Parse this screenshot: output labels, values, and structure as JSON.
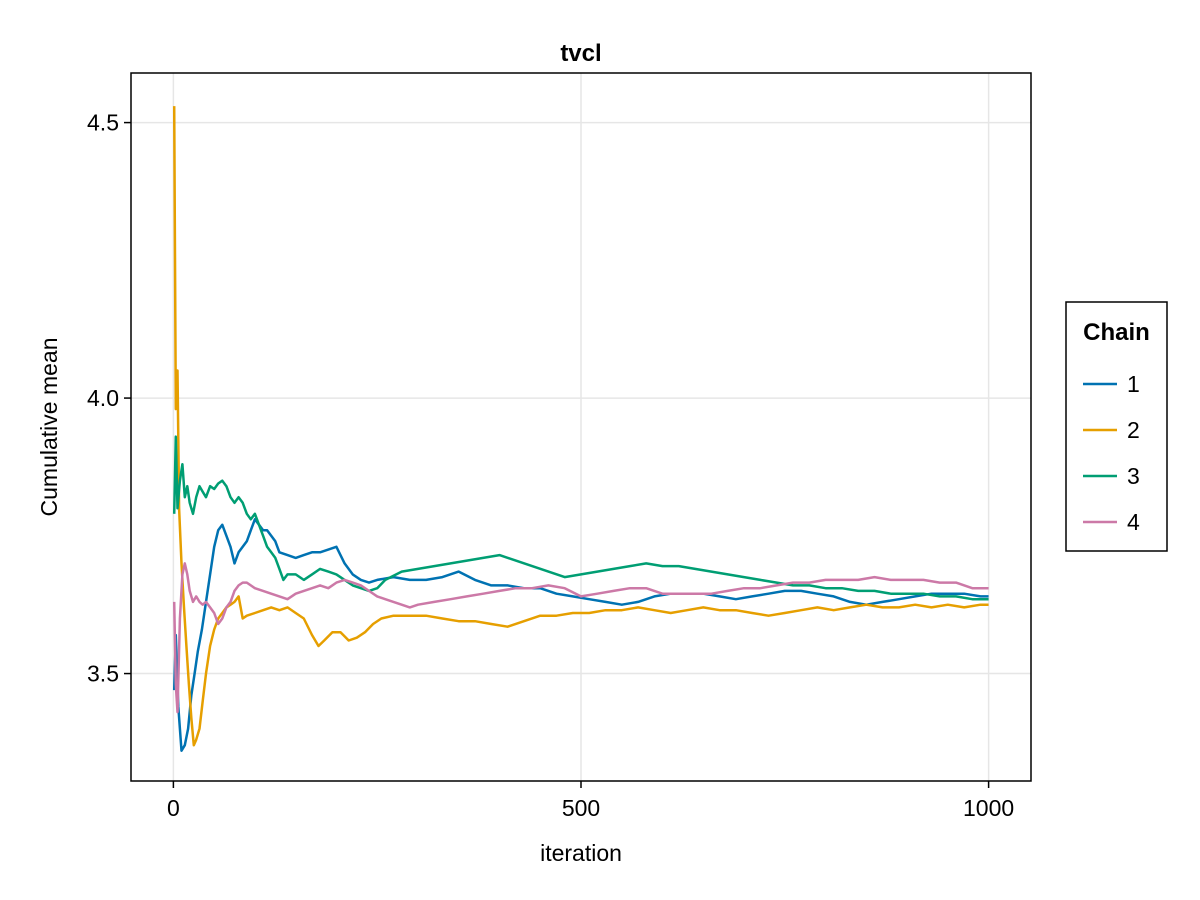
{
  "chart_data": {
    "type": "line",
    "title": "tvcl",
    "xlabel": "iteration",
    "ylabel": "Cumulative mean",
    "xlim": [
      -52,
      1052
    ],
    "ylim": [
      3.305,
      4.59
    ],
    "xticks": [
      0,
      500,
      1000
    ],
    "xtick_labels": [
      "0",
      "500",
      "1000"
    ],
    "yticks": [
      3.5,
      4.0,
      4.5
    ],
    "ytick_labels": [
      "3.5",
      "4.0",
      "4.5"
    ],
    "grid": true,
    "legend": {
      "title": "Chain",
      "position": "right"
    },
    "series": [
      {
        "name": "1",
        "color": "#0072b2",
        "points": [
          [
            1,
            3.47
          ],
          [
            3,
            3.57
          ],
          [
            6,
            3.44
          ],
          [
            10,
            3.36
          ],
          [
            14,
            3.37
          ],
          [
            18,
            3.4
          ],
          [
            22,
            3.46
          ],
          [
            26,
            3.5
          ],
          [
            30,
            3.54
          ],
          [
            35,
            3.58
          ],
          [
            40,
            3.63
          ],
          [
            45,
            3.68
          ],
          [
            50,
            3.73
          ],
          [
            55,
            3.76
          ],
          [
            60,
            3.77
          ],
          [
            65,
            3.75
          ],
          [
            70,
            3.73
          ],
          [
            75,
            3.7
          ],
          [
            80,
            3.72
          ],
          [
            85,
            3.73
          ],
          [
            90,
            3.74
          ],
          [
            95,
            3.76
          ],
          [
            100,
            3.78
          ],
          [
            105,
            3.77
          ],
          [
            110,
            3.76
          ],
          [
            115,
            3.76
          ],
          [
            120,
            3.75
          ],
          [
            125,
            3.74
          ],
          [
            130,
            3.72
          ],
          [
            140,
            3.715
          ],
          [
            150,
            3.71
          ],
          [
            160,
            3.715
          ],
          [
            170,
            3.72
          ],
          [
            180,
            3.72
          ],
          [
            190,
            3.725
          ],
          [
            200,
            3.73
          ],
          [
            210,
            3.7
          ],
          [
            220,
            3.68
          ],
          [
            230,
            3.67
          ],
          [
            240,
            3.665
          ],
          [
            250,
            3.67
          ],
          [
            270,
            3.675
          ],
          [
            290,
            3.67
          ],
          [
            310,
            3.67
          ],
          [
            330,
            3.675
          ],
          [
            350,
            3.685
          ],
          [
            370,
            3.67
          ],
          [
            390,
            3.66
          ],
          [
            410,
            3.66
          ],
          [
            430,
            3.655
          ],
          [
            450,
            3.655
          ],
          [
            470,
            3.645
          ],
          [
            490,
            3.64
          ],
          [
            510,
            3.635
          ],
          [
            530,
            3.63
          ],
          [
            550,
            3.625
          ],
          [
            570,
            3.63
          ],
          [
            590,
            3.64
          ],
          [
            610,
            3.645
          ],
          [
            630,
            3.645
          ],
          [
            650,
            3.645
          ],
          [
            670,
            3.64
          ],
          [
            690,
            3.635
          ],
          [
            710,
            3.64
          ],
          [
            730,
            3.645
          ],
          [
            750,
            3.65
          ],
          [
            770,
            3.65
          ],
          [
            790,
            3.645
          ],
          [
            810,
            3.64
          ],
          [
            830,
            3.63
          ],
          [
            850,
            3.625
          ],
          [
            870,
            3.63
          ],
          [
            890,
            3.635
          ],
          [
            910,
            3.64
          ],
          [
            930,
            3.645
          ],
          [
            950,
            3.645
          ],
          [
            970,
            3.645
          ],
          [
            990,
            3.64
          ],
          [
            1000,
            3.64
          ]
        ]
      },
      {
        "name": "2",
        "color": "#e69f00",
        "points": [
          [
            1,
            4.53
          ],
          [
            3,
            3.98
          ],
          [
            5,
            4.05
          ],
          [
            7,
            3.8
          ],
          [
            10,
            3.7
          ],
          [
            13,
            3.62
          ],
          [
            16,
            3.55
          ],
          [
            19,
            3.48
          ],
          [
            22,
            3.42
          ],
          [
            25,
            3.37
          ],
          [
            28,
            3.38
          ],
          [
            32,
            3.4
          ],
          [
            36,
            3.45
          ],
          [
            40,
            3.5
          ],
          [
            45,
            3.55
          ],
          [
            50,
            3.58
          ],
          [
            55,
            3.6
          ],
          [
            60,
            3.61
          ],
          [
            65,
            3.62
          ],
          [
            70,
            3.625
          ],
          [
            75,
            3.63
          ],
          [
            80,
            3.64
          ],
          [
            85,
            3.6
          ],
          [
            90,
            3.605
          ],
          [
            100,
            3.61
          ],
          [
            110,
            3.615
          ],
          [
            120,
            3.62
          ],
          [
            130,
            3.615
          ],
          [
            140,
            3.62
          ],
          [
            150,
            3.61
          ],
          [
            160,
            3.6
          ],
          [
            170,
            3.57
          ],
          [
            178,
            3.55
          ],
          [
            185,
            3.56
          ],
          [
            195,
            3.575
          ],
          [
            205,
            3.575
          ],
          [
            215,
            3.56
          ],
          [
            225,
            3.565
          ],
          [
            235,
            3.575
          ],
          [
            245,
            3.59
          ],
          [
            255,
            3.6
          ],
          [
            270,
            3.605
          ],
          [
            290,
            3.605
          ],
          [
            310,
            3.605
          ],
          [
            330,
            3.6
          ],
          [
            350,
            3.595
          ],
          [
            370,
            3.595
          ],
          [
            390,
            3.59
          ],
          [
            410,
            3.585
          ],
          [
            430,
            3.595
          ],
          [
            450,
            3.605
          ],
          [
            470,
            3.605
          ],
          [
            490,
            3.61
          ],
          [
            510,
            3.61
          ],
          [
            530,
            3.615
          ],
          [
            550,
            3.615
          ],
          [
            570,
            3.62
          ],
          [
            590,
            3.615
          ],
          [
            610,
            3.61
          ],
          [
            630,
            3.615
          ],
          [
            650,
            3.62
          ],
          [
            670,
            3.615
          ],
          [
            690,
            3.615
          ],
          [
            710,
            3.61
          ],
          [
            730,
            3.605
          ],
          [
            750,
            3.61
          ],
          [
            770,
            3.615
          ],
          [
            790,
            3.62
          ],
          [
            810,
            3.615
          ],
          [
            830,
            3.62
          ],
          [
            850,
            3.625
          ],
          [
            870,
            3.62
          ],
          [
            890,
            3.62
          ],
          [
            910,
            3.625
          ],
          [
            930,
            3.62
          ],
          [
            950,
            3.625
          ],
          [
            970,
            3.62
          ],
          [
            990,
            3.625
          ],
          [
            1000,
            3.625
          ]
        ]
      },
      {
        "name": "3",
        "color": "#009e73",
        "points": [
          [
            1,
            3.79
          ],
          [
            3,
            3.93
          ],
          [
            5,
            3.8
          ],
          [
            8,
            3.85
          ],
          [
            11,
            3.88
          ],
          [
            14,
            3.82
          ],
          [
            17,
            3.84
          ],
          [
            20,
            3.81
          ],
          [
            24,
            3.79
          ],
          [
            28,
            3.82
          ],
          [
            32,
            3.84
          ],
          [
            36,
            3.83
          ],
          [
            40,
            3.82
          ],
          [
            45,
            3.84
          ],
          [
            50,
            3.835
          ],
          [
            55,
            3.845
          ],
          [
            60,
            3.85
          ],
          [
            65,
            3.84
          ],
          [
            70,
            3.82
          ],
          [
            75,
            3.81
          ],
          [
            80,
            3.82
          ],
          [
            85,
            3.81
          ],
          [
            90,
            3.79
          ],
          [
            95,
            3.78
          ],
          [
            100,
            3.79
          ],
          [
            105,
            3.77
          ],
          [
            110,
            3.75
          ],
          [
            115,
            3.73
          ],
          [
            120,
            3.72
          ],
          [
            125,
            3.71
          ],
          [
            130,
            3.69
          ],
          [
            135,
            3.67
          ],
          [
            140,
            3.68
          ],
          [
            150,
            3.68
          ],
          [
            160,
            3.67
          ],
          [
            170,
            3.68
          ],
          [
            180,
            3.69
          ],
          [
            190,
            3.685
          ],
          [
            200,
            3.68
          ],
          [
            210,
            3.67
          ],
          [
            220,
            3.66
          ],
          [
            230,
            3.655
          ],
          [
            240,
            3.65
          ],
          [
            250,
            3.655
          ],
          [
            260,
            3.67
          ],
          [
            280,
            3.685
          ],
          [
            300,
            3.69
          ],
          [
            320,
            3.695
          ],
          [
            340,
            3.7
          ],
          [
            360,
            3.705
          ],
          [
            380,
            3.71
          ],
          [
            400,
            3.715
          ],
          [
            420,
            3.705
          ],
          [
            440,
            3.695
          ],
          [
            460,
            3.685
          ],
          [
            480,
            3.675
          ],
          [
            500,
            3.68
          ],
          [
            520,
            3.685
          ],
          [
            540,
            3.69
          ],
          [
            560,
            3.695
          ],
          [
            580,
            3.7
          ],
          [
            600,
            3.695
          ],
          [
            620,
            3.695
          ],
          [
            640,
            3.69
          ],
          [
            660,
            3.685
          ],
          [
            680,
            3.68
          ],
          [
            700,
            3.675
          ],
          [
            720,
            3.67
          ],
          [
            740,
            3.665
          ],
          [
            760,
            3.66
          ],
          [
            780,
            3.66
          ],
          [
            800,
            3.655
          ],
          [
            820,
            3.655
          ],
          [
            840,
            3.65
          ],
          [
            860,
            3.65
          ],
          [
            880,
            3.645
          ],
          [
            900,
            3.645
          ],
          [
            920,
            3.645
          ],
          [
            940,
            3.64
          ],
          [
            960,
            3.64
          ],
          [
            980,
            3.635
          ],
          [
            1000,
            3.635
          ]
        ]
      },
      {
        "name": "4",
        "color": "#cc79a7",
        "points": [
          [
            1,
            3.63
          ],
          [
            3,
            3.48
          ],
          [
            5,
            3.43
          ],
          [
            8,
            3.6
          ],
          [
            11,
            3.68
          ],
          [
            14,
            3.7
          ],
          [
            17,
            3.68
          ],
          [
            20,
            3.65
          ],
          [
            24,
            3.63
          ],
          [
            28,
            3.64
          ],
          [
            32,
            3.63
          ],
          [
            36,
            3.625
          ],
          [
            40,
            3.63
          ],
          [
            45,
            3.62
          ],
          [
            50,
            3.61
          ],
          [
            55,
            3.59
          ],
          [
            60,
            3.6
          ],
          [
            65,
            3.62
          ],
          [
            70,
            3.63
          ],
          [
            75,
            3.65
          ],
          [
            80,
            3.66
          ],
          [
            85,
            3.665
          ],
          [
            90,
            3.665
          ],
          [
            95,
            3.66
          ],
          [
            100,
            3.655
          ],
          [
            110,
            3.65
          ],
          [
            120,
            3.645
          ],
          [
            130,
            3.64
          ],
          [
            140,
            3.635
          ],
          [
            150,
            3.645
          ],
          [
            160,
            3.65
          ],
          [
            170,
            3.655
          ],
          [
            180,
            3.66
          ],
          [
            190,
            3.655
          ],
          [
            200,
            3.665
          ],
          [
            210,
            3.67
          ],
          [
            220,
            3.665
          ],
          [
            230,
            3.66
          ],
          [
            240,
            3.65
          ],
          [
            250,
            3.64
          ],
          [
            260,
            3.635
          ],
          [
            270,
            3.63
          ],
          [
            280,
            3.625
          ],
          [
            290,
            3.62
          ],
          [
            300,
            3.625
          ],
          [
            320,
            3.63
          ],
          [
            340,
            3.635
          ],
          [
            360,
            3.64
          ],
          [
            380,
            3.645
          ],
          [
            400,
            3.65
          ],
          [
            420,
            3.655
          ],
          [
            440,
            3.655
          ],
          [
            460,
            3.66
          ],
          [
            480,
            3.655
          ],
          [
            500,
            3.64
          ],
          [
            520,
            3.645
          ],
          [
            540,
            3.65
          ],
          [
            560,
            3.655
          ],
          [
            580,
            3.655
          ],
          [
            600,
            3.645
          ],
          [
            620,
            3.645
          ],
          [
            640,
            3.645
          ],
          [
            660,
            3.645
          ],
          [
            680,
            3.65
          ],
          [
            700,
            3.655
          ],
          [
            720,
            3.655
          ],
          [
            740,
            3.66
          ],
          [
            760,
            3.665
          ],
          [
            780,
            3.665
          ],
          [
            800,
            3.67
          ],
          [
            820,
            3.67
          ],
          [
            840,
            3.67
          ],
          [
            860,
            3.675
          ],
          [
            880,
            3.67
          ],
          [
            900,
            3.67
          ],
          [
            920,
            3.67
          ],
          [
            940,
            3.665
          ],
          [
            960,
            3.665
          ],
          [
            980,
            3.655
          ],
          [
            1000,
            3.655
          ]
        ]
      }
    ]
  }
}
